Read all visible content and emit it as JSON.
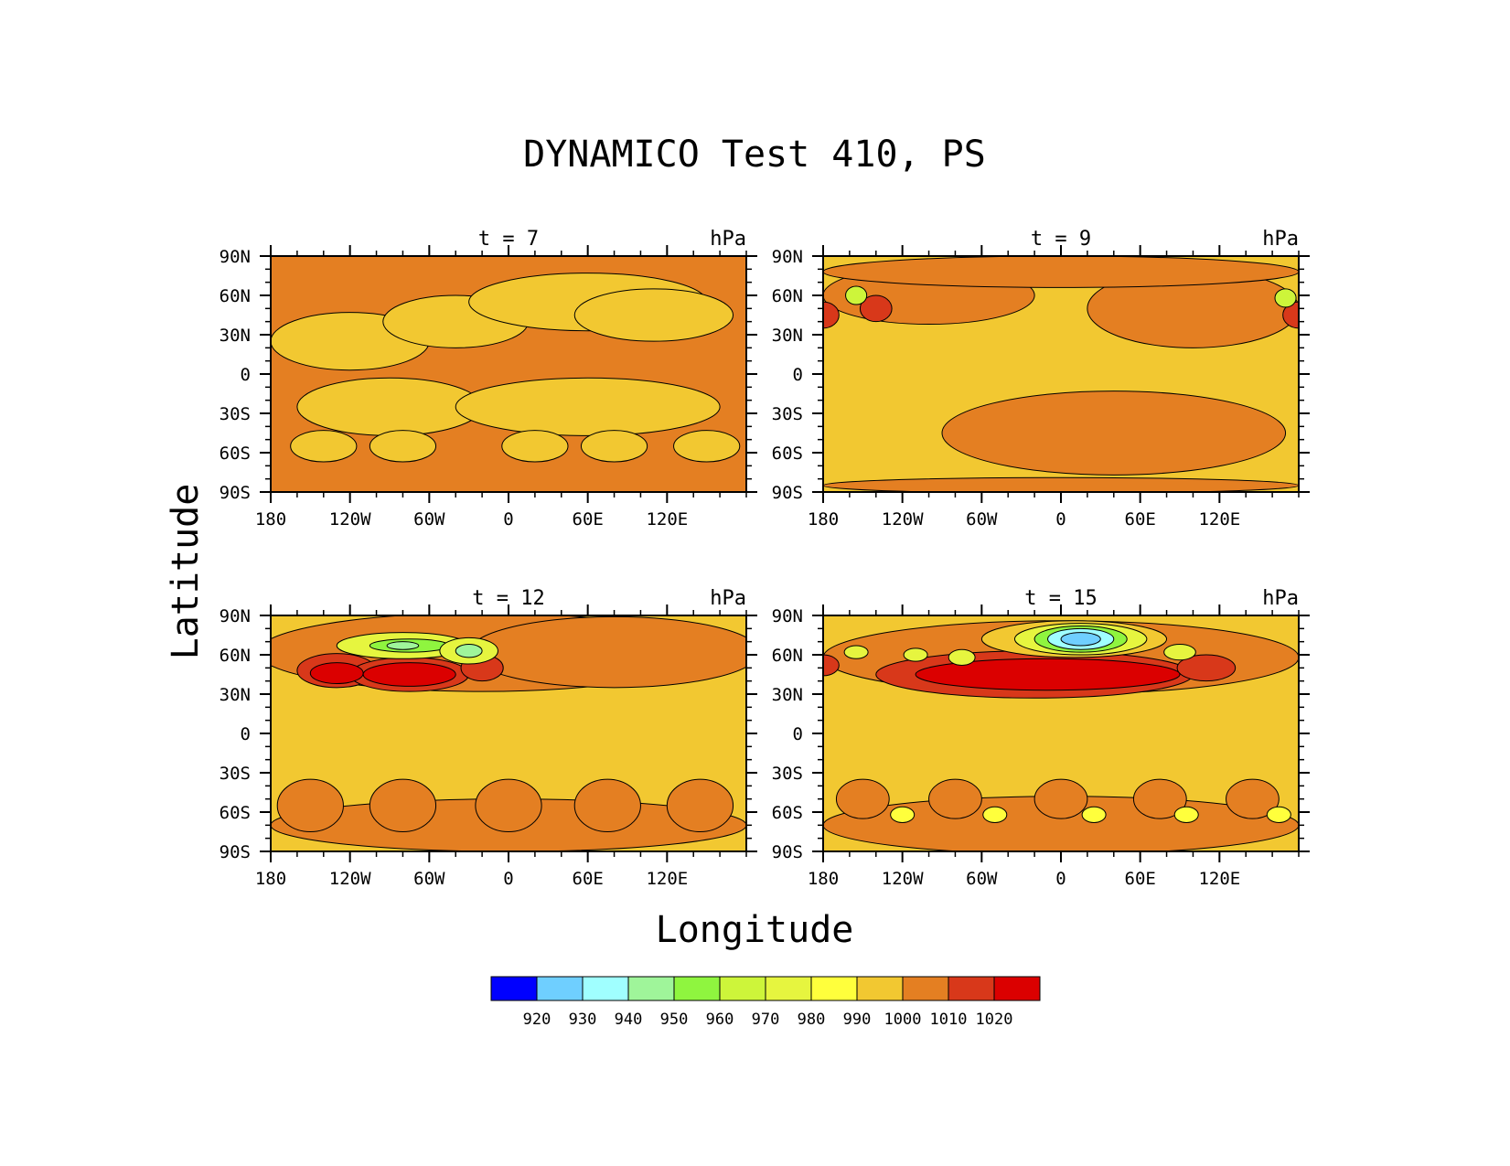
{
  "title": "DYNAMICO Test 410, PS",
  "xlabel": "Longitude",
  "ylabel": "Latitude",
  "chart_data": [
    {
      "type": "heatmap",
      "panel_label": "t = 7",
      "units": "hPa",
      "x_ticks": [
        "180",
        "120W",
        "60W",
        "0",
        "60E",
        "120E"
      ],
      "y_ticks": [
        "90N",
        "60N",
        "30N",
        "0",
        "30S",
        "60S",
        "90S"
      ],
      "xlim": [
        -180,
        180
      ],
      "ylim": [
        -90,
        90
      ],
      "background_level": 1000,
      "features": [
        {
          "level": 990,
          "lon": -120,
          "lat": 25,
          "rx": 60,
          "ry": 22
        },
        {
          "level": 990,
          "lon": -40,
          "lat": 40,
          "rx": 55,
          "ry": 20
        },
        {
          "level": 990,
          "lon": 60,
          "lat": 55,
          "rx": 90,
          "ry": 22
        },
        {
          "level": 990,
          "lon": 110,
          "lat": 45,
          "rx": 60,
          "ry": 20
        },
        {
          "level": 990,
          "lon": -90,
          "lat": -25,
          "rx": 70,
          "ry": 22
        },
        {
          "level": 990,
          "lon": 60,
          "lat": -25,
          "rx": 100,
          "ry": 22
        },
        {
          "level": 990,
          "lon": -140,
          "lat": -55,
          "rx": 25,
          "ry": 12
        },
        {
          "level": 990,
          "lon": -80,
          "lat": -55,
          "rx": 25,
          "ry": 12
        },
        {
          "level": 990,
          "lon": 20,
          "lat": -55,
          "rx": 25,
          "ry": 12
        },
        {
          "level": 990,
          "lon": 80,
          "lat": -55,
          "rx": 25,
          "ry": 12
        },
        {
          "level": 990,
          "lon": 150,
          "lat": -55,
          "rx": 25,
          "ry": 12
        }
      ]
    },
    {
      "type": "heatmap",
      "panel_label": "t = 9",
      "units": "hPa",
      "x_ticks": [
        "180",
        "120W",
        "60W",
        "0",
        "60E",
        "120E"
      ],
      "y_ticks": [
        "90N",
        "60N",
        "30N",
        "0",
        "30S",
        "60S",
        "90S"
      ],
      "xlim": [
        -180,
        180
      ],
      "ylim": [
        -90,
        90
      ],
      "background_level": 990,
      "features": [
        {
          "level": 1000,
          "lon": -100,
          "lat": 60,
          "rx": 80,
          "ry": 22
        },
        {
          "level": 1000,
          "lon": 100,
          "lat": 50,
          "rx": 80,
          "ry": 30
        },
        {
          "level": 1000,
          "lon": 40,
          "lat": -45,
          "rx": 130,
          "ry": 32
        },
        {
          "level": 1000,
          "lon": 0,
          "lat": 78,
          "rx": 180,
          "ry": 12
        },
        {
          "level": 1000,
          "lon": 0,
          "lat": -85,
          "rx": 180,
          "ry": 6
        },
        {
          "level": 1010,
          "lon": -140,
          "lat": 50,
          "rx": 12,
          "ry": 10
        },
        {
          "level": 1010,
          "lon": -180,
          "lat": 45,
          "rx": 12,
          "ry": 10
        },
        {
          "level": 1010,
          "lon": 180,
          "lat": 45,
          "rx": 12,
          "ry": 10
        },
        {
          "level": 960,
          "lon": -155,
          "lat": 60,
          "rx": 8,
          "ry": 7
        },
        {
          "level": 960,
          "lon": 170,
          "lat": 58,
          "rx": 8,
          "ry": 7
        }
      ]
    },
    {
      "type": "heatmap",
      "panel_label": "t = 12",
      "units": "hPa",
      "x_ticks": [
        "180",
        "120W",
        "60W",
        "0",
        "60E",
        "120E"
      ],
      "y_ticks": [
        "90N",
        "60N",
        "30N",
        "0",
        "30S",
        "60S",
        "90S"
      ],
      "xlim": [
        -180,
        180
      ],
      "ylim": [
        -90,
        90
      ],
      "background_level": 990,
      "features": [
        {
          "level": 1000,
          "lon": -20,
          "lat": 62,
          "rx": 170,
          "ry": 30
        },
        {
          "level": 1000,
          "lon": 80,
          "lat": 62,
          "rx": 110,
          "ry": 27
        },
        {
          "level": 1000,
          "lon": 0,
          "lat": -70,
          "rx": 180,
          "ry": 20
        },
        {
          "level": 1000,
          "lon": -150,
          "lat": -55,
          "rx": 25,
          "ry": 20
        },
        {
          "level": 1000,
          "lon": -80,
          "lat": -55,
          "rx": 25,
          "ry": 20
        },
        {
          "level": 1000,
          "lon": 0,
          "lat": -55,
          "rx": 25,
          "ry": 20
        },
        {
          "level": 1000,
          "lon": 75,
          "lat": -55,
          "rx": 25,
          "ry": 20
        },
        {
          "level": 1000,
          "lon": 145,
          "lat": -55,
          "rx": 25,
          "ry": 20
        },
        {
          "level": 1010,
          "lon": -130,
          "lat": 48,
          "rx": 30,
          "ry": 13
        },
        {
          "level": 1010,
          "lon": -75,
          "lat": 45,
          "rx": 45,
          "ry": 13
        },
        {
          "level": 1010,
          "lon": -20,
          "lat": 50,
          "rx": 16,
          "ry": 10
        },
        {
          "level": 1020,
          "lon": -130,
          "lat": 46,
          "rx": 20,
          "ry": 8
        },
        {
          "level": 1020,
          "lon": -75,
          "lat": 45,
          "rx": 35,
          "ry": 9
        },
        {
          "level": 970,
          "lon": -80,
          "lat": 67,
          "rx": 50,
          "ry": 10
        },
        {
          "level": 950,
          "lon": -75,
          "lat": 67,
          "rx": 30,
          "ry": 5
        },
        {
          "level": 940,
          "lon": -80,
          "lat": 67,
          "rx": 12,
          "ry": 3
        },
        {
          "level": 970,
          "lon": -30,
          "lat": 63,
          "rx": 22,
          "ry": 10
        },
        {
          "level": 940,
          "lon": -30,
          "lat": 63,
          "rx": 10,
          "ry": 5
        }
      ]
    },
    {
      "type": "heatmap",
      "panel_label": "t = 15",
      "units": "hPa",
      "x_ticks": [
        "180",
        "120W",
        "60W",
        "0",
        "60E",
        "120E"
      ],
      "y_ticks": [
        "90N",
        "60N",
        "30N",
        "0",
        "30S",
        "60S",
        "90S"
      ],
      "xlim": [
        -180,
        180
      ],
      "ylim": [
        -90,
        90
      ],
      "background_level": 990,
      "features": [
        {
          "level": 1000,
          "lon": 0,
          "lat": 58,
          "rx": 180,
          "ry": 28
        },
        {
          "level": 1000,
          "lon": 0,
          "lat": -70,
          "rx": 180,
          "ry": 22
        },
        {
          "level": 1000,
          "lon": -150,
          "lat": -50,
          "rx": 20,
          "ry": 15
        },
        {
          "level": 1000,
          "lon": -80,
          "lat": -50,
          "rx": 20,
          "ry": 15
        },
        {
          "level": 1000,
          "lon": 0,
          "lat": -50,
          "rx": 20,
          "ry": 15
        },
        {
          "level": 1000,
          "lon": 75,
          "lat": -50,
          "rx": 20,
          "ry": 15
        },
        {
          "level": 1000,
          "lon": 145,
          "lat": -50,
          "rx": 20,
          "ry": 15
        },
        {
          "level": 1010,
          "lon": -20,
          "lat": 45,
          "rx": 120,
          "ry": 18
        },
        {
          "level": 1010,
          "lon": 110,
          "lat": 50,
          "rx": 22,
          "ry": 10
        },
        {
          "level": 1010,
          "lon": -180,
          "lat": 52,
          "rx": 12,
          "ry": 8
        },
        {
          "level": 1020,
          "lon": -10,
          "lat": 45,
          "rx": 100,
          "ry": 12
        },
        {
          "level": 990,
          "lon": 10,
          "lat": 72,
          "rx": 70,
          "ry": 14
        },
        {
          "level": 970,
          "lon": 15,
          "lat": 72,
          "rx": 50,
          "ry": 12
        },
        {
          "level": 950,
          "lon": 15,
          "lat": 72,
          "rx": 35,
          "ry": 10
        },
        {
          "level": 930,
          "lon": 15,
          "lat": 72,
          "rx": 25,
          "ry": 8
        },
        {
          "level": 920,
          "lon": 15,
          "lat": 72,
          "rx": 15,
          "ry": 5
        },
        {
          "level": 970,
          "lon": -155,
          "lat": 62,
          "rx": 9,
          "ry": 5
        },
        {
          "level": 970,
          "lon": -110,
          "lat": 60,
          "rx": 9,
          "ry": 5
        },
        {
          "level": 970,
          "lon": -75,
          "lat": 58,
          "rx": 10,
          "ry": 6
        },
        {
          "level": 970,
          "lon": 90,
          "lat": 62,
          "rx": 12,
          "ry": 6
        },
        {
          "level": 980,
          "lon": -120,
          "lat": -62,
          "rx": 9,
          "ry": 6
        },
        {
          "level": 980,
          "lon": -50,
          "lat": -62,
          "rx": 9,
          "ry": 6
        },
        {
          "level": 980,
          "lon": 25,
          "lat": -62,
          "rx": 9,
          "ry": 6
        },
        {
          "level": 980,
          "lon": 95,
          "lat": -62,
          "rx": 9,
          "ry": 6
        },
        {
          "level": 980,
          "lon": 165,
          "lat": -62,
          "rx": 9,
          "ry": 6
        }
      ]
    }
  ],
  "colorbar": {
    "labels": [
      "920",
      "930",
      "940",
      "950",
      "960",
      "970",
      "980",
      "990",
      "1000",
      "1010",
      "1020"
    ],
    "colors": [
      "#0000ff",
      "#6fcfff",
      "#a0ffff",
      "#9ff59a",
      "#8ff53f",
      "#cdf53a",
      "#e6f53f",
      "#ffff3c",
      "#f2c831",
      "#e47f22",
      "#d8381a",
      "#db0000"
    ]
  }
}
